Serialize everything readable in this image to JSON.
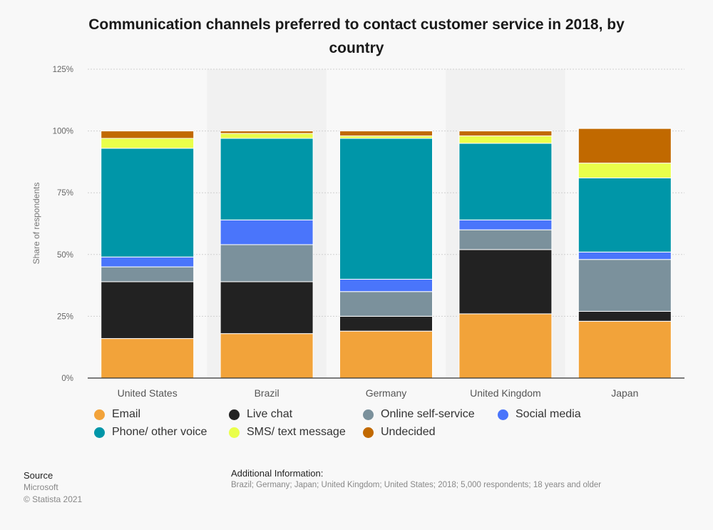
{
  "title": "Communication channels preferred to contact customer service in 2018, by country",
  "chart_data": {
    "type": "bar",
    "stacked": true,
    "categories": [
      "United States",
      "Brazil",
      "Germany",
      "United Kingdom",
      "Japan"
    ],
    "ylabel": "Share of respondents",
    "ylim": [
      0,
      125
    ],
    "yticks": [
      "0%",
      "25%",
      "50%",
      "75%",
      "100%",
      "125%"
    ],
    "grid": true,
    "legend_position": "bottom",
    "series": [
      {
        "name": "Email",
        "color": "#f2a33a",
        "values": [
          16,
          18,
          19,
          26,
          23
        ]
      },
      {
        "name": "Live chat",
        "color": "#222222",
        "values": [
          23,
          21,
          6,
          26,
          4
        ]
      },
      {
        "name": "Online self-service",
        "color": "#7b919c",
        "values": [
          6,
          15,
          10,
          8,
          21
        ]
      },
      {
        "name": "Social media",
        "color": "#4a75fb",
        "values": [
          4,
          10,
          5,
          4,
          3
        ]
      },
      {
        "name": "Phone/ other voice",
        "color": "#0096a8",
        "values": [
          44,
          33,
          57,
          31,
          30
        ]
      },
      {
        "name": "SMS/ text message",
        "color": "#eaff4a",
        "values": [
          4,
          2,
          1,
          3,
          6
        ]
      },
      {
        "name": "Undecided",
        "color": "#c16900",
        "values": [
          3,
          1,
          2,
          2,
          14
        ]
      }
    ]
  },
  "source": {
    "label": "Source",
    "name": "Microsoft",
    "copyright": "© Statista 2021"
  },
  "additional_info": {
    "label": "Additional Information:",
    "text": "Brazil; Germany; Japan; United Kingdom; United States; 2018; 5,000 respondents; 18 years and older"
  }
}
